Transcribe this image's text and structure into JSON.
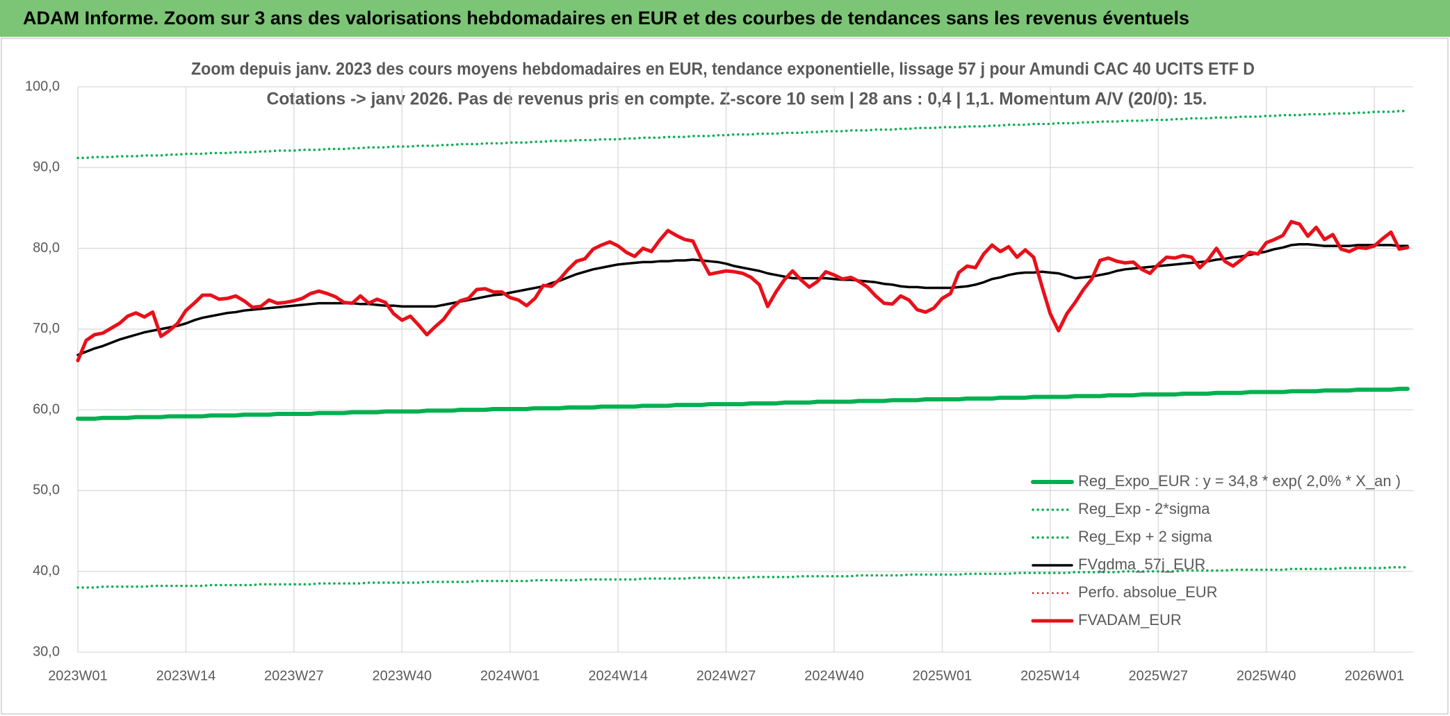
{
  "header": {
    "title": "ADAM Informe. Zoom sur 3 ans des valorisations hebdomadaires en EUR et des courbes de tendances sans les revenus éventuels"
  },
  "chart_data": {
    "type": "line",
    "title": [
      "Zoom depuis janv. 2023 des cours moyens hebdomadaires en EUR, tendance exponentielle, lissage 57 j pour Amundi CAC 40 UCITS ETF D",
      "Cotations -> janv 2026. Pas de revenus pris en compte. Z-score 10 sem | 28 ans : 0,4 | 1,1. Momentum A/V (20/0): 15."
    ],
    "categories": [
      "2023W01",
      null,
      null,
      null,
      null,
      null,
      null,
      null,
      null,
      null,
      null,
      null,
      null,
      "2023W14",
      null,
      null,
      null,
      null,
      null,
      null,
      null,
      null,
      null,
      null,
      null,
      null,
      "2023W27",
      null,
      null,
      null,
      null,
      null,
      null,
      null,
      null,
      null,
      null,
      null,
      null,
      "2023W40",
      null,
      null,
      null,
      null,
      null,
      null,
      null,
      null,
      null,
      null,
      null,
      null,
      "2024W01",
      null,
      null,
      null,
      null,
      null,
      null,
      null,
      null,
      null,
      null,
      null,
      null,
      "2024W14",
      null,
      null,
      null,
      null,
      null,
      null,
      null,
      null,
      null,
      null,
      null,
      null,
      "2024W27",
      null,
      null,
      null,
      null,
      null,
      null,
      null,
      null,
      null,
      null,
      null,
      null,
      "2024W40",
      null,
      null,
      null,
      null,
      null,
      null,
      null,
      null,
      null,
      null,
      null,
      null,
      "2025W01",
      null,
      null,
      null,
      null,
      null,
      null,
      null,
      null,
      null,
      null,
      null,
      null,
      "2025W14",
      null,
      null,
      null,
      null,
      null,
      null,
      null,
      null,
      null,
      null,
      null,
      null,
      "2025W27",
      null,
      null,
      null,
      null,
      null,
      null,
      null,
      null,
      null,
      null,
      null,
      null,
      "2025W40",
      null,
      null,
      null,
      null,
      null,
      null,
      null,
      null,
      null,
      null,
      null,
      null,
      "2026W01",
      null,
      null,
      null,
      null
    ],
    "ylim": [
      30,
      100
    ],
    "yticks": [
      {
        "value": 30,
        "label": "30,0"
      },
      {
        "value": 40,
        "label": "40,0"
      },
      {
        "value": 50,
        "label": "50,0"
      },
      {
        "value": 60,
        "label": "60,0"
      },
      {
        "value": 70,
        "label": "70,0"
      },
      {
        "value": 80,
        "label": "80,0"
      },
      {
        "value": 90,
        "label": "90,0"
      },
      {
        "value": 100,
        "label": "100,0"
      }
    ],
    "grid": true,
    "legend": "lower right",
    "series": [
      {
        "name": "Reg_Expo_EUR : y = 34,8 * exp( 2,0% * X_an )",
        "color": "#00b050",
        "style": "solid",
        "values": [
          58.9,
          58.9,
          58.9,
          59.0,
          59.0,
          59.0,
          59.0,
          59.1,
          59.1,
          59.1,
          59.1,
          59.2,
          59.2,
          59.2,
          59.2,
          59.2,
          59.3,
          59.3,
          59.3,
          59.3,
          59.4,
          59.4,
          59.4,
          59.4,
          59.5,
          59.5,
          59.5,
          59.5,
          59.5,
          59.6,
          59.6,
          59.6,
          59.6,
          59.7,
          59.7,
          59.7,
          59.7,
          59.8,
          59.8,
          59.8,
          59.8,
          59.8,
          59.9,
          59.9,
          59.9,
          59.9,
          60.0,
          60.0,
          60.0,
          60.0,
          60.1,
          60.1,
          60.1,
          60.1,
          60.1,
          60.2,
          60.2,
          60.2,
          60.2,
          60.3,
          60.3,
          60.3,
          60.3,
          60.4,
          60.4,
          60.4,
          60.4,
          60.4,
          60.5,
          60.5,
          60.5,
          60.5,
          60.6,
          60.6,
          60.6,
          60.6,
          60.7,
          60.7,
          60.7,
          60.7,
          60.7,
          60.8,
          60.8,
          60.8,
          60.8,
          60.9,
          60.9,
          60.9,
          60.9,
          61.0,
          61.0,
          61.0,
          61.0,
          61.0,
          61.1,
          61.1,
          61.1,
          61.1,
          61.2,
          61.2,
          61.2,
          61.2,
          61.3,
          61.3,
          61.3,
          61.3,
          61.3,
          61.4,
          61.4,
          61.4,
          61.4,
          61.5,
          61.5,
          61.5,
          61.5,
          61.6,
          61.6,
          61.6,
          61.6,
          61.6,
          61.7,
          61.7,
          61.7,
          61.7,
          61.8,
          61.8,
          61.8,
          61.8,
          61.9,
          61.9,
          61.9,
          61.9,
          61.9,
          62.0,
          62.0,
          62.0,
          62.0,
          62.1,
          62.1,
          62.1,
          62.1,
          62.2,
          62.2,
          62.2,
          62.2,
          62.2,
          62.3,
          62.3,
          62.3,
          62.3,
          62.4,
          62.4,
          62.4,
          62.4,
          62.5,
          62.5,
          62.5,
          62.5,
          62.5,
          62.6,
          62.6
        ]
      },
      {
        "name": "Reg_Exp - 2*sigma",
        "color": "#00b050",
        "style": "dotted",
        "values": [
          38.0,
          38.0,
          38.0,
          38.1,
          38.1,
          38.1,
          38.1,
          38.1,
          38.1,
          38.2,
          38.2,
          38.2,
          38.2,
          38.2,
          38.2,
          38.2,
          38.3,
          38.3,
          38.3,
          38.3,
          38.3,
          38.3,
          38.4,
          38.4,
          38.4,
          38.4,
          38.4,
          38.4,
          38.4,
          38.5,
          38.5,
          38.5,
          38.5,
          38.5,
          38.5,
          38.6,
          38.6,
          38.6,
          38.6,
          38.6,
          38.6,
          38.6,
          38.7,
          38.7,
          38.7,
          38.7,
          38.7,
          38.7,
          38.8,
          38.8,
          38.8,
          38.8,
          38.8,
          38.8,
          38.8,
          38.9,
          38.9,
          38.9,
          38.9,
          38.9,
          38.9,
          39.0,
          39.0,
          39.0,
          39.0,
          39.0,
          39.0,
          39.0,
          39.1,
          39.1,
          39.1,
          39.1,
          39.1,
          39.1,
          39.2,
          39.2,
          39.2,
          39.2,
          39.2,
          39.2,
          39.2,
          39.3,
          39.3,
          39.3,
          39.3,
          39.3,
          39.3,
          39.4,
          39.4,
          39.4,
          39.4,
          39.4,
          39.4,
          39.4,
          39.5,
          39.5,
          39.5,
          39.5,
          39.5,
          39.5,
          39.6,
          39.6,
          39.6,
          39.6,
          39.6,
          39.6,
          39.6,
          39.7,
          39.7,
          39.7,
          39.7,
          39.7,
          39.7,
          39.8,
          39.8,
          39.8,
          39.8,
          39.8,
          39.8,
          39.8,
          39.9,
          39.9,
          39.9,
          39.9,
          39.9,
          39.9,
          40.0,
          40.0,
          40.0,
          40.0,
          40.0,
          40.0,
          40.0,
          40.1,
          40.1,
          40.1,
          40.1,
          40.1,
          40.1,
          40.2,
          40.2,
          40.2,
          40.2,
          40.2,
          40.2,
          40.2,
          40.3,
          40.3,
          40.3,
          40.3,
          40.3,
          40.3,
          40.4,
          40.4,
          40.4,
          40.4,
          40.4,
          40.4,
          40.5,
          40.5,
          40.5
        ]
      },
      {
        "name": "Reg_Exp + 2 sigma",
        "color": "#00b050",
        "style": "dotted",
        "values": [
          91.2,
          91.2,
          91.3,
          91.3,
          91.3,
          91.4,
          91.4,
          91.4,
          91.5,
          91.5,
          91.5,
          91.6,
          91.6,
          91.7,
          91.7,
          91.7,
          91.8,
          91.8,
          91.8,
          91.9,
          91.9,
          91.9,
          92.0,
          92.0,
          92.1,
          92.1,
          92.1,
          92.2,
          92.2,
          92.2,
          92.3,
          92.3,
          92.3,
          92.4,
          92.4,
          92.5,
          92.5,
          92.5,
          92.6,
          92.6,
          92.6,
          92.7,
          92.7,
          92.7,
          92.8,
          92.8,
          92.9,
          92.9,
          92.9,
          93.0,
          93.0,
          93.0,
          93.1,
          93.1,
          93.1,
          93.2,
          93.2,
          93.3,
          93.3,
          93.3,
          93.4,
          93.4,
          93.4,
          93.5,
          93.5,
          93.5,
          93.6,
          93.6,
          93.7,
          93.7,
          93.7,
          93.8,
          93.8,
          93.8,
          93.9,
          93.9,
          93.9,
          94.0,
          94.0,
          94.1,
          94.1,
          94.1,
          94.2,
          94.2,
          94.2,
          94.3,
          94.3,
          94.3,
          94.4,
          94.4,
          94.5,
          94.5,
          94.5,
          94.6,
          94.6,
          94.6,
          94.7,
          94.7,
          94.7,
          94.8,
          94.8,
          94.9,
          94.9,
          94.9,
          95.0,
          95.0,
          95.0,
          95.1,
          95.1,
          95.1,
          95.2,
          95.2,
          95.3,
          95.3,
          95.3,
          95.4,
          95.4,
          95.4,
          95.5,
          95.5,
          95.5,
          95.6,
          95.6,
          95.7,
          95.7,
          95.7,
          95.8,
          95.8,
          95.8,
          95.9,
          95.9,
          95.9,
          96.0,
          96.0,
          96.1,
          96.1,
          96.1,
          96.2,
          96.2,
          96.2,
          96.3,
          96.3,
          96.3,
          96.4,
          96.4,
          96.5,
          96.5,
          96.5,
          96.6,
          96.6,
          96.6,
          96.7,
          96.7,
          96.7,
          96.8,
          96.8,
          96.9,
          96.9,
          96.9,
          97.0,
          97.0
        ]
      },
      {
        "name": "FVgdma_57j_EUR",
        "color": "#000000",
        "style": "solid",
        "values": [
          66.8,
          67.2,
          67.6,
          67.9,
          68.3,
          68.7,
          69.0,
          69.3,
          69.6,
          69.8,
          70.0,
          70.2,
          70.4,
          70.7,
          71.1,
          71.4,
          71.6,
          71.8,
          72.0,
          72.1,
          72.3,
          72.4,
          72.5,
          72.6,
          72.7,
          72.8,
          72.9,
          73.0,
          73.1,
          73.2,
          73.2,
          73.2,
          73.2,
          73.2,
          73.1,
          73.1,
          73.0,
          72.9,
          72.9,
          72.8,
          72.8,
          72.8,
          72.8,
          72.8,
          73.0,
          73.2,
          73.4,
          73.6,
          73.8,
          74.0,
          74.2,
          74.3,
          74.5,
          74.7,
          74.9,
          75.1,
          75.3,
          75.7,
          76.0,
          76.4,
          76.8,
          77.1,
          77.4,
          77.6,
          77.8,
          78.0,
          78.1,
          78.2,
          78.3,
          78.3,
          78.4,
          78.4,
          78.5,
          78.5,
          78.6,
          78.5,
          78.4,
          78.3,
          78.1,
          77.8,
          77.6,
          77.4,
          77.2,
          76.9,
          76.7,
          76.5,
          76.3,
          76.3,
          76.3,
          76.3,
          76.3,
          76.2,
          76.1,
          76.1,
          76.0,
          75.9,
          75.8,
          75.6,
          75.5,
          75.3,
          75.2,
          75.2,
          75.1,
          75.1,
          75.1,
          75.1,
          75.2,
          75.3,
          75.5,
          75.8,
          76.2,
          76.4,
          76.7,
          76.9,
          77.0,
          77.0,
          77.1,
          77.0,
          76.9,
          76.6,
          76.3,
          76.4,
          76.5,
          76.7,
          76.9,
          77.2,
          77.4,
          77.5,
          77.6,
          77.7,
          77.8,
          77.9,
          78.0,
          78.1,
          78.2,
          78.3,
          78.4,
          78.6,
          78.7,
          78.9,
          79.0,
          79.2,
          79.4,
          79.6,
          79.9,
          80.1,
          80.4,
          80.5,
          80.5,
          80.4,
          80.3,
          80.3,
          80.3,
          80.3,
          80.4,
          80.4,
          80.4,
          80.4,
          80.4,
          80.3,
          80.3
        ]
      },
      {
        "name": "Perfo. absolue_EUR",
        "color": "#e00000",
        "style": "dotted",
        "values": [
          null,
          null,
          null,
          null,
          null,
          null,
          null,
          null,
          null,
          null,
          null,
          null,
          null,
          null,
          null,
          null,
          null,
          null,
          null,
          null,
          null,
          null,
          null,
          null,
          null,
          null,
          null,
          null,
          null,
          null,
          null,
          null,
          null,
          null,
          null,
          null,
          null,
          null,
          null,
          null,
          null,
          null,
          null,
          null,
          null,
          null,
          null,
          null,
          null,
          null,
          null,
          null,
          null,
          null,
          null,
          null,
          null,
          null,
          null,
          null,
          null,
          null,
          null,
          null,
          null,
          null,
          null,
          null,
          null,
          null,
          null,
          null,
          null,
          null,
          null,
          null,
          null,
          null,
          null,
          null,
          null,
          null,
          null,
          null,
          null,
          null,
          null,
          null,
          null,
          null,
          null,
          null,
          null,
          null,
          null,
          null,
          null,
          null,
          null,
          null,
          null,
          null,
          null,
          null,
          null,
          null,
          null,
          null,
          null,
          null,
          null,
          null,
          null,
          null,
          null,
          null,
          null,
          null,
          null,
          null,
          null,
          null,
          null,
          null,
          null,
          null,
          null,
          null,
          null,
          null,
          null,
          null,
          null,
          null,
          null,
          null,
          null,
          null,
          null,
          null,
          null,
          null,
          null,
          null,
          null,
          null,
          null,
          null,
          null,
          null,
          null,
          null,
          null,
          null,
          null,
          null,
          null,
          null,
          null,
          null,
          null
        ]
      },
      {
        "name": "FVADAM_EUR",
        "color": "#e8101a",
        "style": "solid",
        "values": [
          66.1,
          68.6,
          69.3,
          69.5,
          70.1,
          70.7,
          71.6,
          72.0,
          71.5,
          72.1,
          69.1,
          69.8,
          70.7,
          72.3,
          73.2,
          74.2,
          74.2,
          73.7,
          73.8,
          74.1,
          73.5,
          72.7,
          72.8,
          73.6,
          73.2,
          73.3,
          73.5,
          73.8,
          74.4,
          74.7,
          74.4,
          74.0,
          73.3,
          73.2,
          74.1,
          73.2,
          73.7,
          73.3,
          71.9,
          71.1,
          71.6,
          70.5,
          69.3,
          70.3,
          71.2,
          72.6,
          73.5,
          73.8,
          74.9,
          75.0,
          74.6,
          74.6,
          73.9,
          73.6,
          72.9,
          73.8,
          75.4,
          75.3,
          76.2,
          77.4,
          78.4,
          78.7,
          79.9,
          80.4,
          80.8,
          80.3,
          79.5,
          79.0,
          80.0,
          79.6,
          81.0,
          82.2,
          81.6,
          81.1,
          80.9,
          78.7,
          76.8,
          77.0,
          77.2,
          77.1,
          76.9,
          76.4,
          75.5,
          72.8,
          74.6,
          76.1,
          77.2,
          76.1,
          75.2,
          75.9,
          77.1,
          76.7,
          76.2,
          76.4,
          75.9,
          75.2,
          74.1,
          73.2,
          73.1,
          74.1,
          73.6,
          72.4,
          72.1,
          72.6,
          73.8,
          74.4,
          77.0,
          77.8,
          77.6,
          79.3,
          80.4,
          79.6,
          80.2,
          78.9,
          79.8,
          78.9,
          75.3,
          71.9,
          69.8,
          71.9,
          73.3,
          74.9,
          76.2,
          78.5,
          78.8,
          78.4,
          78.2,
          78.3,
          77.4,
          76.9,
          78.0,
          78.9,
          78.8,
          79.1,
          78.9,
          77.6,
          78.6,
          80.0,
          78.4,
          77.8,
          78.6,
          79.5,
          79.3,
          80.7,
          81.1,
          81.6,
          83.3,
          83.0,
          81.5,
          82.6,
          81.1,
          81.7,
          79.9,
          79.6,
          80.1,
          80.0,
          80.3,
          81.2,
          82.0,
          79.9,
          80.1
        ]
      }
    ]
  }
}
